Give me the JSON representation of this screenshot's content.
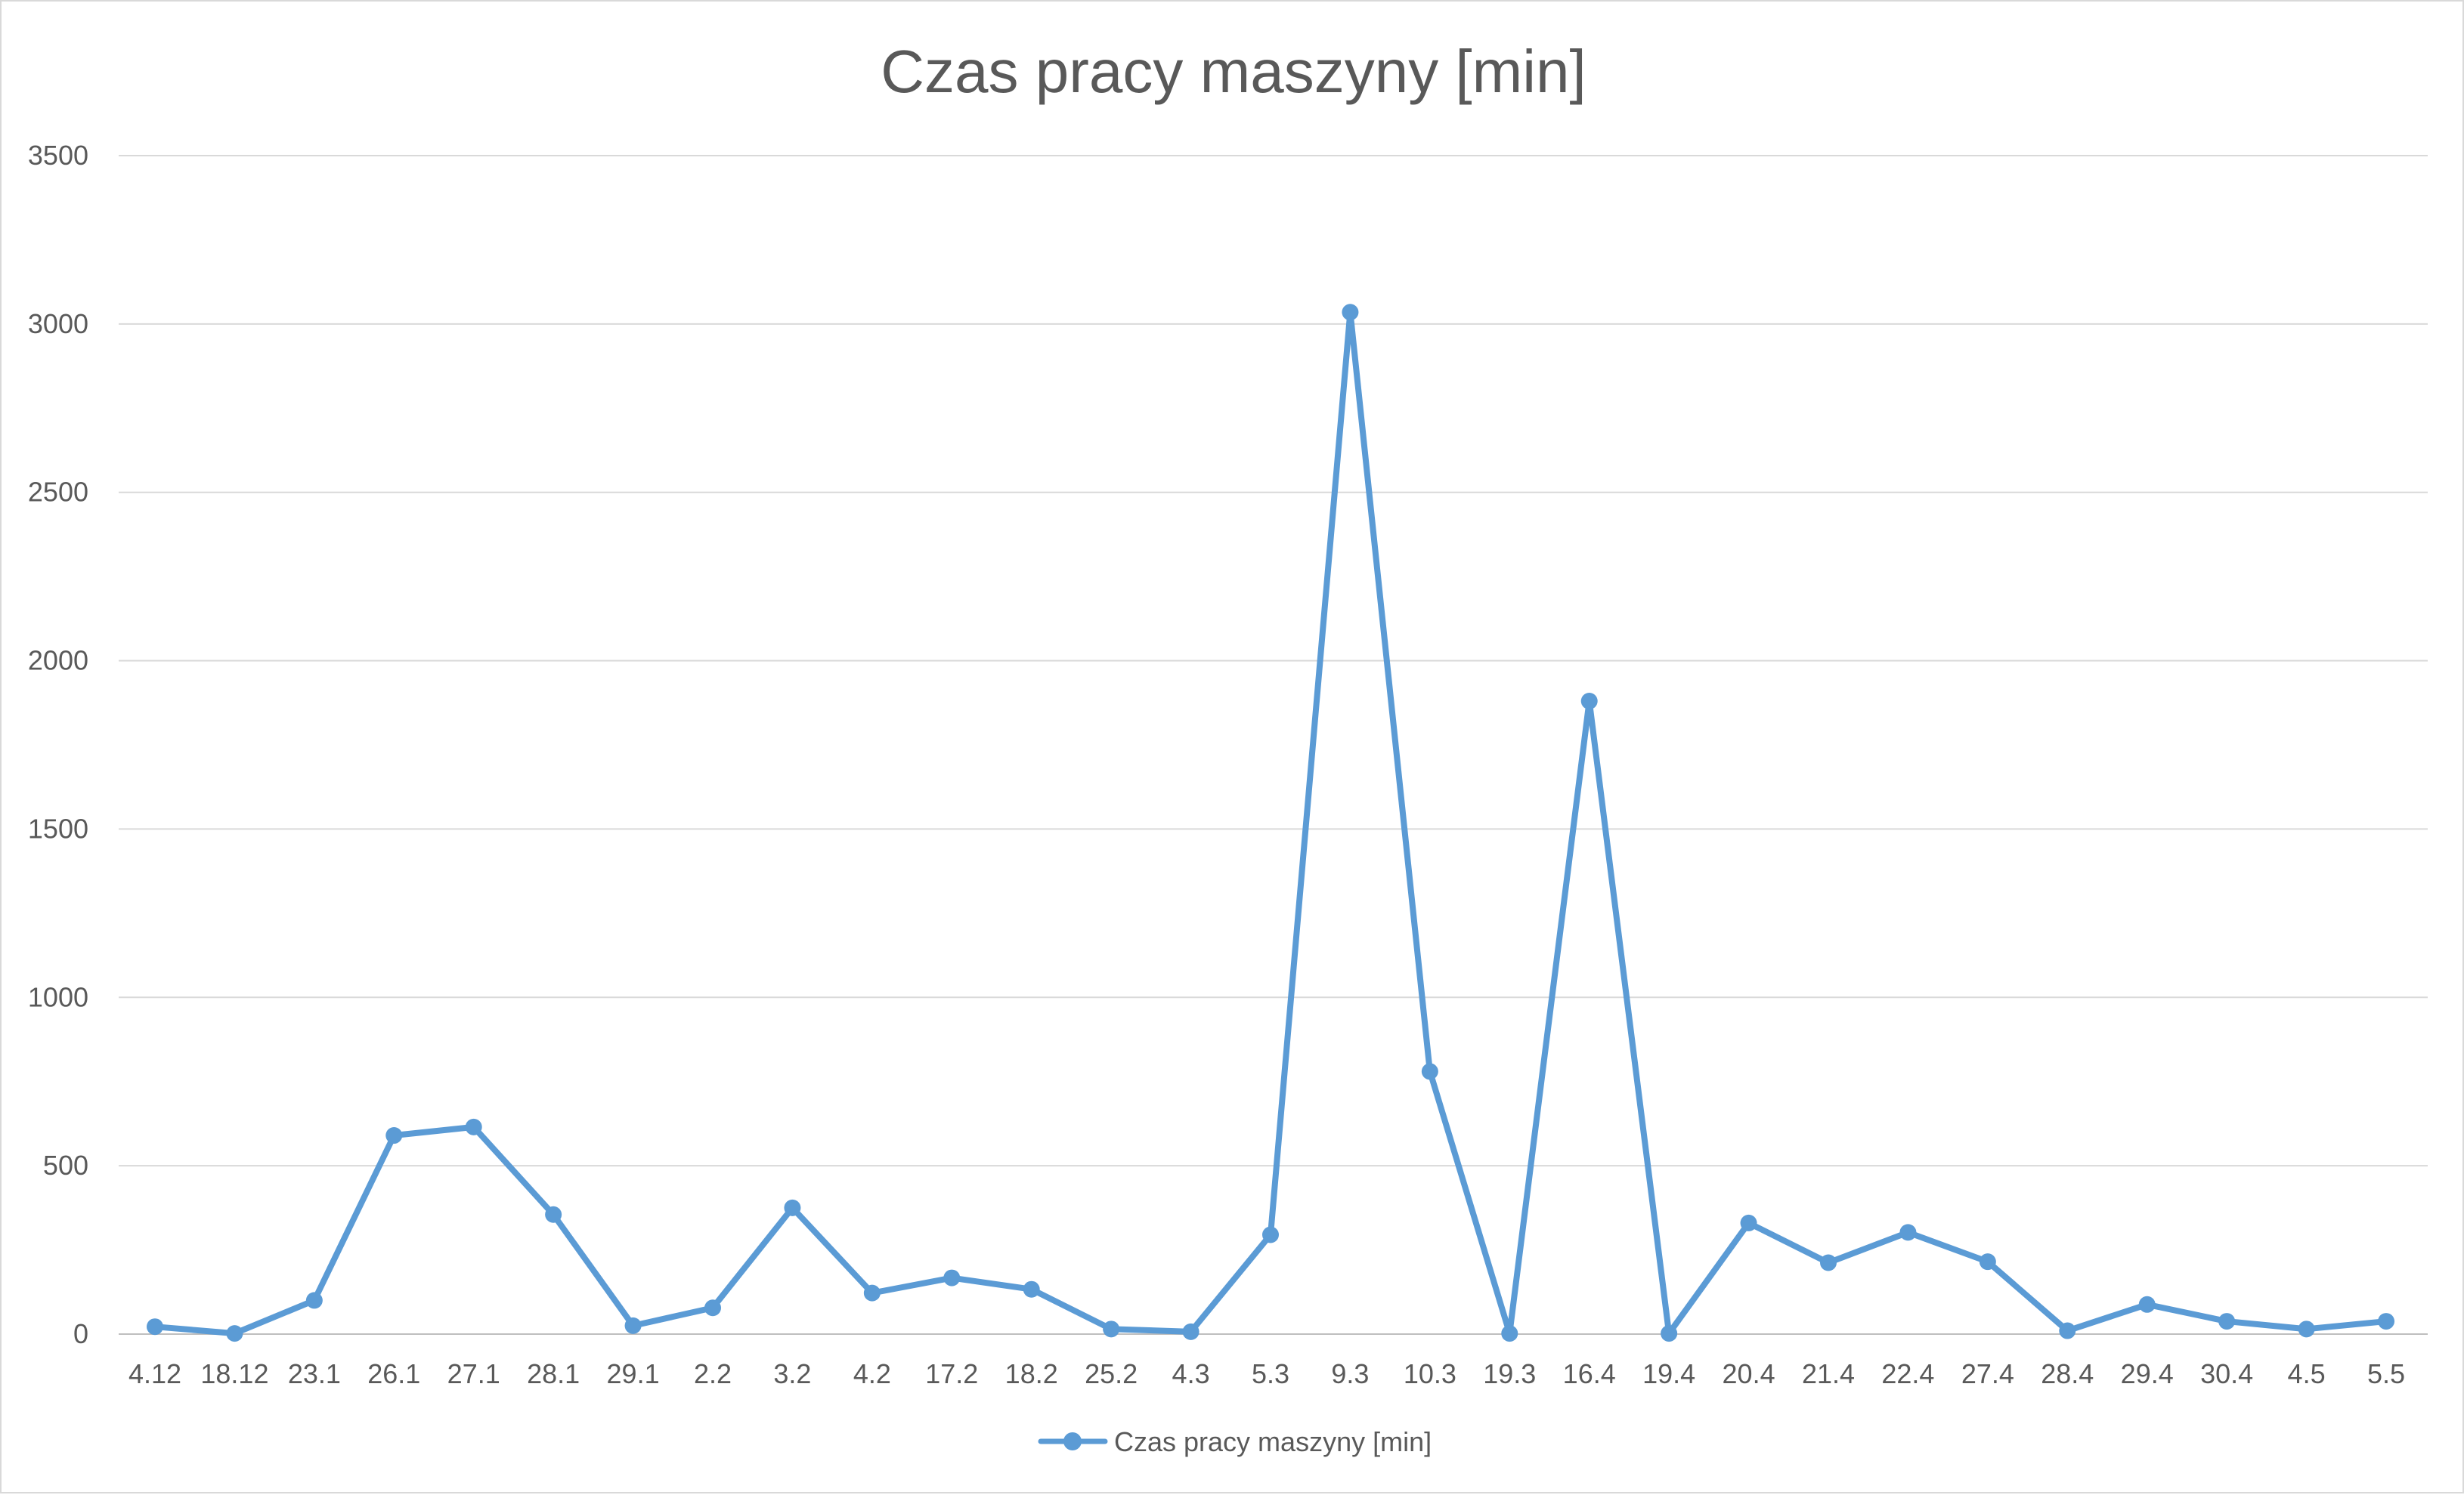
{
  "chart_data": {
    "type": "line",
    "title": "Czas pracy maszyny [min]",
    "xlabel": "",
    "ylabel": "",
    "ylim": [
      0,
      3500
    ],
    "yticks": [
      0,
      500,
      1000,
      1500,
      2000,
      2500,
      3000,
      3500
    ],
    "grid": true,
    "legend_position": "bottom",
    "categories": [
      "4.12",
      "18.12",
      "23.1",
      "26.1",
      "27.1",
      "28.1",
      "29.1",
      "2.2",
      "3.2",
      "4.2",
      "17.2",
      "18.2",
      "25.2",
      "4.3",
      "5.3",
      "9.3",
      "10.3",
      "19.3",
      "16.4",
      "19.4",
      "20.4",
      "21.4",
      "22.4",
      "27.4",
      "28.4",
      "29.4",
      "30.4",
      "4.5",
      "5.5"
    ],
    "series": [
      {
        "name": "Czas pracy maszyny [min]",
        "color": "#5b9bd5",
        "values": [
          22,
          2,
          100,
          590,
          615,
          355,
          25,
          78,
          375,
          122,
          167,
          133,
          15,
          7,
          295,
          3035,
          780,
          2,
          1880,
          2,
          330,
          212,
          302,
          215,
          10,
          88,
          38,
          15,
          38
        ]
      }
    ]
  }
}
